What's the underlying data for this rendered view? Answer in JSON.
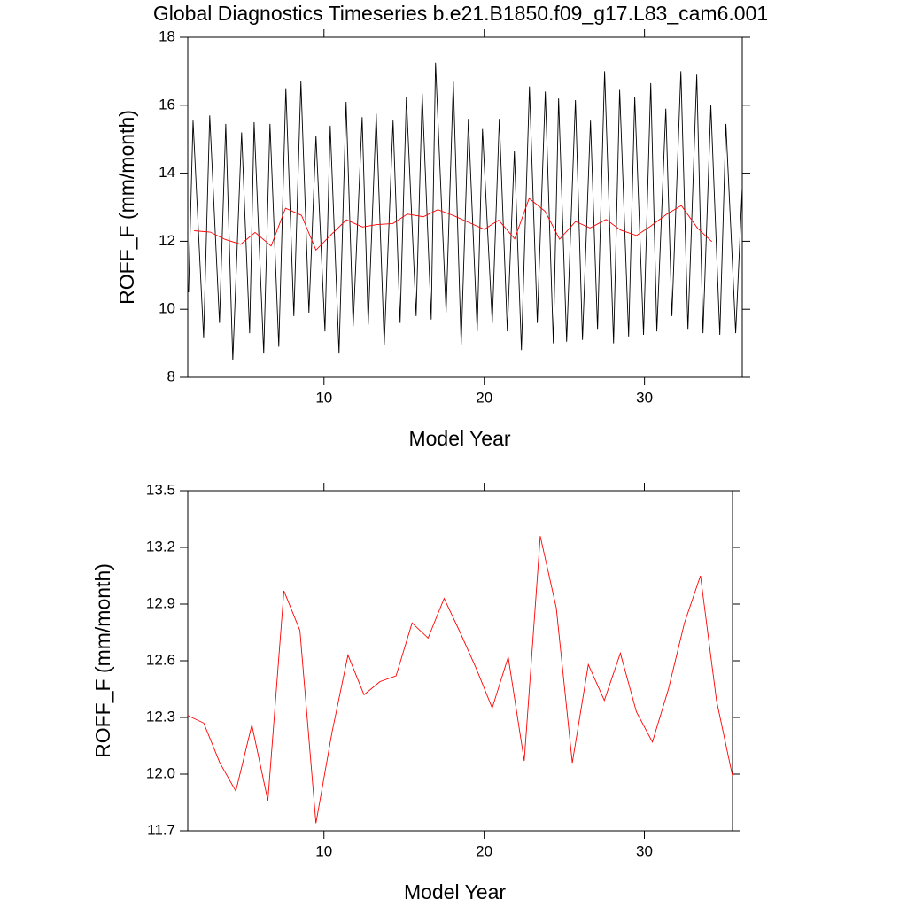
{
  "chart_data": [
    {
      "type": "line",
      "title": "Global Diagnostics Timeseries b.e21.B1850.f09_g17.L83_cam6.001",
      "x_label": "Model Year",
      "y_label": "ROFF_F (mm/month)",
      "xlim": [
        1.5,
        36.1
      ],
      "ylim": [
        8,
        18
      ],
      "xticks": [
        10,
        20,
        30
      ],
      "yticks": [
        8,
        10,
        12,
        14,
        16,
        18
      ],
      "series": [
        {
          "color": "#000000",
          "x": [
            1.55,
            1.83,
            2.49,
            2.87,
            3.48,
            3.87,
            4.31,
            4.86,
            5.36,
            5.64,
            6.24,
            6.63,
            7.18,
            7.62,
            8.12,
            8.56,
            9.06,
            9.5,
            10.06,
            10.39,
            10.94,
            11.38,
            11.82,
            12.38,
            12.76,
            13.26,
            13.76,
            14.31,
            14.75,
            15.14,
            15.75,
            16.13,
            16.69,
            16.96,
            17.62,
            18.07,
            18.56,
            19.01,
            19.56,
            19.89,
            20.5,
            20.94,
            21.44,
            21.88,
            22.32,
            22.82,
            23.31,
            23.81,
            24.31,
            24.64,
            25.14,
            25.69,
            26.13,
            26.63,
            27.07,
            27.51,
            28.07,
            28.45,
            29.01,
            29.39,
            29.94,
            30.39,
            30.77,
            31.33,
            31.71,
            32.27,
            32.71,
            33.26,
            33.65,
            34.14,
            34.7,
            35.08,
            35.69,
            36.1
          ],
          "values": [
            10.5,
            15.55,
            9.15,
            15.7,
            9.6,
            15.45,
            8.5,
            15.2,
            9.3,
            15.5,
            8.7,
            15.45,
            8.9,
            16.5,
            9.8,
            16.7,
            9.9,
            15.1,
            9.35,
            15.4,
            8.7,
            16.1,
            9.5,
            15.65,
            9.55,
            15.75,
            8.95,
            15.55,
            9.6,
            16.25,
            9.8,
            16.35,
            9.7,
            17.25,
            9.9,
            16.7,
            8.95,
            15.6,
            9.35,
            15.3,
            9.6,
            15.6,
            9.35,
            14.65,
            8.8,
            16.55,
            9.6,
            16.4,
            9.0,
            16.2,
            9.05,
            16.15,
            9.1,
            15.55,
            9.4,
            17.0,
            9.0,
            16.45,
            9.2,
            16.25,
            9.25,
            16.65,
            9.35,
            15.9,
            9.8,
            17.0,
            9.4,
            16.9,
            9.3,
            16.0,
            9.25,
            15.45,
            9.3,
            13.6
          ]
        },
        {
          "color": "#ff0000",
          "x": [
            1.9,
            2.9,
            3.8,
            4.8,
            5.7,
            6.7,
            7.6,
            8.6,
            9.5,
            10.5,
            11.4,
            12.4,
            13.3,
            14.3,
            15.2,
            16.2,
            17.1,
            18.1,
            19.0,
            20.0,
            20.9,
            21.9,
            22.8,
            23.8,
            24.7,
            25.7,
            26.6,
            27.6,
            28.5,
            29.5,
            30.4,
            31.4,
            32.3,
            33.3,
            34.2
          ],
          "values": [
            12.31,
            12.27,
            12.06,
            11.91,
            12.26,
            11.86,
            12.97,
            12.76,
            11.74,
            12.22,
            12.63,
            12.42,
            12.49,
            12.52,
            12.8,
            12.72,
            12.93,
            12.75,
            12.56,
            12.35,
            12.62,
            12.07,
            13.26,
            12.88,
            12.06,
            12.58,
            12.39,
            12.64,
            12.33,
            12.17,
            12.45,
            12.8,
            13.05,
            12.39,
            11.99
          ]
        }
      ]
    },
    {
      "type": "line",
      "x_label": "Model Year",
      "y_label": "ROFF_F (mm/month)",
      "xlim": [
        1.5,
        35.5
      ],
      "ylim": [
        11.7,
        13.5
      ],
      "xticks": [
        10,
        20,
        30
      ],
      "yticks": [
        {
          "value": 11.7,
          "label": "11.7"
        },
        {
          "value": 12,
          "label": "12.0"
        },
        {
          "value": 12.3,
          "label": "12.3"
        },
        {
          "value": 12.6,
          "label": "12.6"
        },
        {
          "value": 12.9,
          "label": "12.9"
        },
        {
          "value": 13.2,
          "label": "13.2"
        },
        {
          "value": 13.5,
          "label": "13.5"
        }
      ],
      "series": [
        {
          "color": "#ff0000",
          "x": [
            1.5,
            2.5,
            3.5,
            4.5,
            5.5,
            6.5,
            7.5,
            8.5,
            9.5,
            10.5,
            11.5,
            12.5,
            13.5,
            14.5,
            15.5,
            16.5,
            17.5,
            18.5,
            19.5,
            20.5,
            21.5,
            22.5,
            23.5,
            24.5,
            25.5,
            26.5,
            27.5,
            28.5,
            29.5,
            30.5,
            31.5,
            32.5,
            33.5,
            34.5,
            35.5
          ],
          "values": [
            12.31,
            12.27,
            12.06,
            11.91,
            12.26,
            11.86,
            12.97,
            12.76,
            11.74,
            12.22,
            12.63,
            12.42,
            12.49,
            12.52,
            12.8,
            12.72,
            12.93,
            12.75,
            12.56,
            12.35,
            12.62,
            12.07,
            13.26,
            12.88,
            12.06,
            12.58,
            12.39,
            12.64,
            12.33,
            12.17,
            12.45,
            12.8,
            13.05,
            12.39,
            11.99
          ]
        }
      ]
    }
  ]
}
